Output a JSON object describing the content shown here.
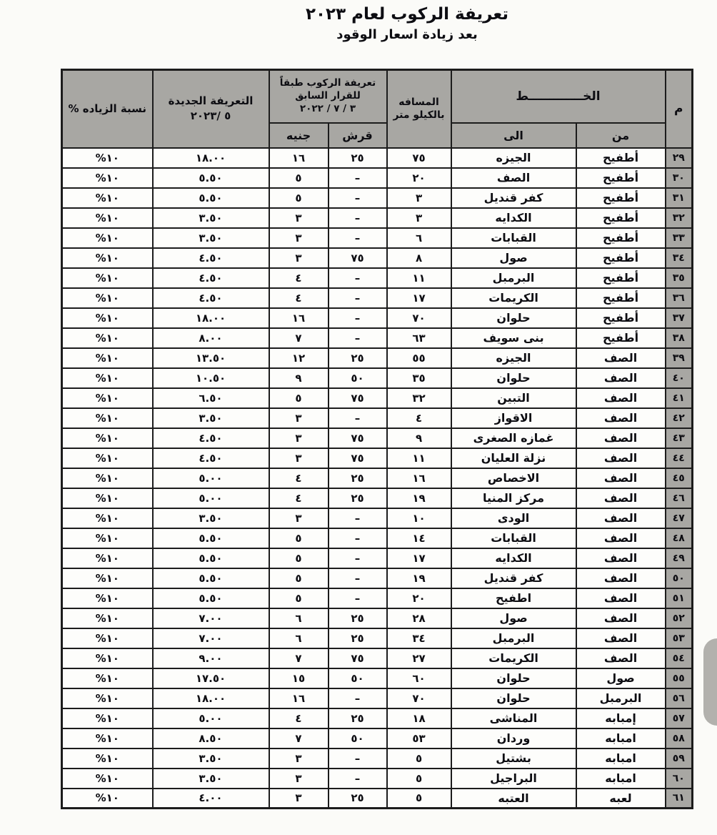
{
  "page": {
    "title_line1": "تعريفة الركوب لعام ٢٠٢٣",
    "title_line2": "بعد زيادة اسعار الوقود"
  },
  "table": {
    "headers": {
      "num": "م",
      "line": "الخـــــــــــــط",
      "from": "من",
      "to": "الى",
      "distance_l1": "المسافه",
      "distance_l2": "بالكيلو متر",
      "old_tariff_l1": "تعريفة الركوب طبقاً",
      "old_tariff_l2": "للقرار السابق",
      "old_tariff_l3": "٣ / ٧ / ٢٠٢٢",
      "qirsh": "قرش",
      "genih": "جنيه",
      "new_tariff_l1": "التعريفة الجديدة",
      "new_tariff_l2": "٥ /٢٠٢٣",
      "increase": "نسبة الزياده %"
    },
    "rows": [
      {
        "num": "٢٩",
        "from": "أطفيح",
        "to": "الجيزه",
        "distance": "٧٥",
        "qirsh": "٢٥",
        "genih": "١٦",
        "new": "١٨.٠٠",
        "inc": "%١٠"
      },
      {
        "num": "٣٠",
        "from": "أطفيح",
        "to": "الصف",
        "distance": "٢٠",
        "qirsh": "–",
        "genih": "٥",
        "new": "٥.٥٠",
        "inc": "%١٠"
      },
      {
        "num": "٣١",
        "from": "أطفيح",
        "to": "كفر قنديل",
        "distance": "٣",
        "qirsh": "–",
        "genih": "٥",
        "new": "٥.٥٠",
        "inc": "%١٠"
      },
      {
        "num": "٣٢",
        "from": "أطفيح",
        "to": "الكدايه",
        "distance": "٣",
        "qirsh": "–",
        "genih": "٣",
        "new": "٣.٥٠",
        "inc": "%١٠"
      },
      {
        "num": "٣٣",
        "from": "أطفيح",
        "to": "القبابات",
        "distance": "٦",
        "qirsh": "–",
        "genih": "٣",
        "new": "٣.٥٠",
        "inc": "%١٠"
      },
      {
        "num": "٣٤",
        "from": "أطفيح",
        "to": "صول",
        "distance": "٨",
        "qirsh": "٧٥",
        "genih": "٣",
        "new": "٤.٥٠",
        "inc": "%١٠"
      },
      {
        "num": "٣٥",
        "from": "أطفيح",
        "to": "البرمبل",
        "distance": "١١",
        "qirsh": "–",
        "genih": "٤",
        "new": "٤.٥٠",
        "inc": "%١٠"
      },
      {
        "num": "٣٦",
        "from": "أطفيح",
        "to": "الكريمات",
        "distance": "١٧",
        "qirsh": "–",
        "genih": "٤",
        "new": "٤.٥٠",
        "inc": "%١٠"
      },
      {
        "num": "٣٧",
        "from": "أطفيح",
        "to": "حلوان",
        "distance": "٧٠",
        "qirsh": "–",
        "genih": "١٦",
        "new": "١٨.٠٠",
        "inc": "%١٠"
      },
      {
        "num": "٣٨",
        "from": "أطفيح",
        "to": "بنى سويف",
        "distance": "٦٣",
        "qirsh": "–",
        "genih": "٧",
        "new": "٨.٠٠",
        "inc": "%١٠"
      },
      {
        "num": "٣٩",
        "from": "الصف",
        "to": "الجيزه",
        "distance": "٥٥",
        "qirsh": "٢٥",
        "genih": "١٢",
        "new": "١٣.٥٠",
        "inc": "%١٠"
      },
      {
        "num": "٤٠",
        "from": "الصف",
        "to": "حلوان",
        "distance": "٣٥",
        "qirsh": "٥٠",
        "genih": "٩",
        "new": "١٠.٥٠",
        "inc": "%١٠"
      },
      {
        "num": "٤١",
        "from": "الصف",
        "to": "التبين",
        "distance": "٣٢",
        "qirsh": "٧٥",
        "genih": "٥",
        "new": "٦.٥٠",
        "inc": "%١٠"
      },
      {
        "num": "٤٢",
        "from": "الصف",
        "to": "الاقواز",
        "distance": "٤",
        "qirsh": "–",
        "genih": "٣",
        "new": "٣.٥٠",
        "inc": "%١٠"
      },
      {
        "num": "٤٣",
        "from": "الصف",
        "to": "غمازه الصغرى",
        "distance": "٩",
        "qirsh": "٧٥",
        "genih": "٣",
        "new": "٤.٥٠",
        "inc": "%١٠"
      },
      {
        "num": "٤٤",
        "from": "الصف",
        "to": "نزلة العليان",
        "distance": "١١",
        "qirsh": "٧٥",
        "genih": "٣",
        "new": "٤.٥٠",
        "inc": "%١٠"
      },
      {
        "num": "٤٥",
        "from": "الصف",
        "to": "الاخصاص",
        "distance": "١٦",
        "qirsh": "٢٥",
        "genih": "٤",
        "new": "٥.٠٠",
        "inc": "%١٠"
      },
      {
        "num": "٤٦",
        "from": "الصف",
        "to": "مركز المنيا",
        "distance": "١٩",
        "qirsh": "٢٥",
        "genih": "٤",
        "new": "٥.٠٠",
        "inc": "%١٠"
      },
      {
        "num": "٤٧",
        "from": "الصف",
        "to": "الودى",
        "distance": "١٠",
        "qirsh": "–",
        "genih": "٣",
        "new": "٣.٥٠",
        "inc": "%١٠"
      },
      {
        "num": "٤٨",
        "from": "الصف",
        "to": "القبابات",
        "distance": "١٤",
        "qirsh": "–",
        "genih": "٥",
        "new": "٥.٥٠",
        "inc": "%١٠"
      },
      {
        "num": "٤٩",
        "from": "الصف",
        "to": "الكدايه",
        "distance": "١٧",
        "qirsh": "–",
        "genih": "٥",
        "new": "٥.٥٠",
        "inc": "%١٠"
      },
      {
        "num": "٥٠",
        "from": "الصف",
        "to": "كفر قنديل",
        "distance": "١٩",
        "qirsh": "–",
        "genih": "٥",
        "new": "٥.٥٠",
        "inc": "%١٠"
      },
      {
        "num": "٥١",
        "from": "الصف",
        "to": "اطفيح",
        "distance": "٢٠",
        "qirsh": "–",
        "genih": "٥",
        "new": "٥.٥٠",
        "inc": "%١٠"
      },
      {
        "num": "٥٢",
        "from": "الصف",
        "to": "صول",
        "distance": "٢٨",
        "qirsh": "٢٥",
        "genih": "٦",
        "new": "٧.٠٠",
        "inc": "%١٠"
      },
      {
        "num": "٥٣",
        "from": "الصف",
        "to": "البرمبل",
        "distance": "٣٤",
        "qirsh": "٢٥",
        "genih": "٦",
        "new": "٧.٠٠",
        "inc": "%١٠"
      },
      {
        "num": "٥٤",
        "from": "الصف",
        "to": "الكريمات",
        "distance": "٢٧",
        "qirsh": "٧٥",
        "genih": "٧",
        "new": "٩.٠٠",
        "inc": "%١٠"
      },
      {
        "num": "٥٥",
        "from": "صول",
        "to": "حلوان",
        "distance": "٦٠",
        "qirsh": "٥٠",
        "genih": "١٥",
        "new": "١٧.٥٠",
        "inc": "%١٠"
      },
      {
        "num": "٥٦",
        "from": "البرمبل",
        "to": "حلوان",
        "distance": "٧٠",
        "qirsh": "–",
        "genih": "١٦",
        "new": "١٨.٠٠",
        "inc": "%١٠"
      },
      {
        "num": "٥٧",
        "from": "إمبابه",
        "to": "المناشى",
        "distance": "١٨",
        "qirsh": "٢٥",
        "genih": "٤",
        "new": "٥.٠٠",
        "inc": "%١٠"
      },
      {
        "num": "٥٨",
        "from": "امبابه",
        "to": "وردان",
        "distance": "٥٣",
        "qirsh": "٥٠",
        "genih": "٧",
        "new": "٨.٥٠",
        "inc": "%١٠"
      },
      {
        "num": "٥٩",
        "from": "امبابه",
        "to": "بشتيل",
        "distance": "٥",
        "qirsh": "–",
        "genih": "٣",
        "new": "٣.٥٠",
        "inc": "%١٠"
      },
      {
        "num": "٦٠",
        "from": "امبابه",
        "to": "البراجيل",
        "distance": "٥",
        "qirsh": "–",
        "genih": "٣",
        "new": "٣.٥٠",
        "inc": "%١٠"
      },
      {
        "num": "٦١",
        "from": "لعبه",
        "to": "العتبه",
        "distance": "٥",
        "qirsh": "٢٥",
        "genih": "٣",
        "new": "٤.٠٠",
        "inc": "%١٠"
      }
    ]
  }
}
